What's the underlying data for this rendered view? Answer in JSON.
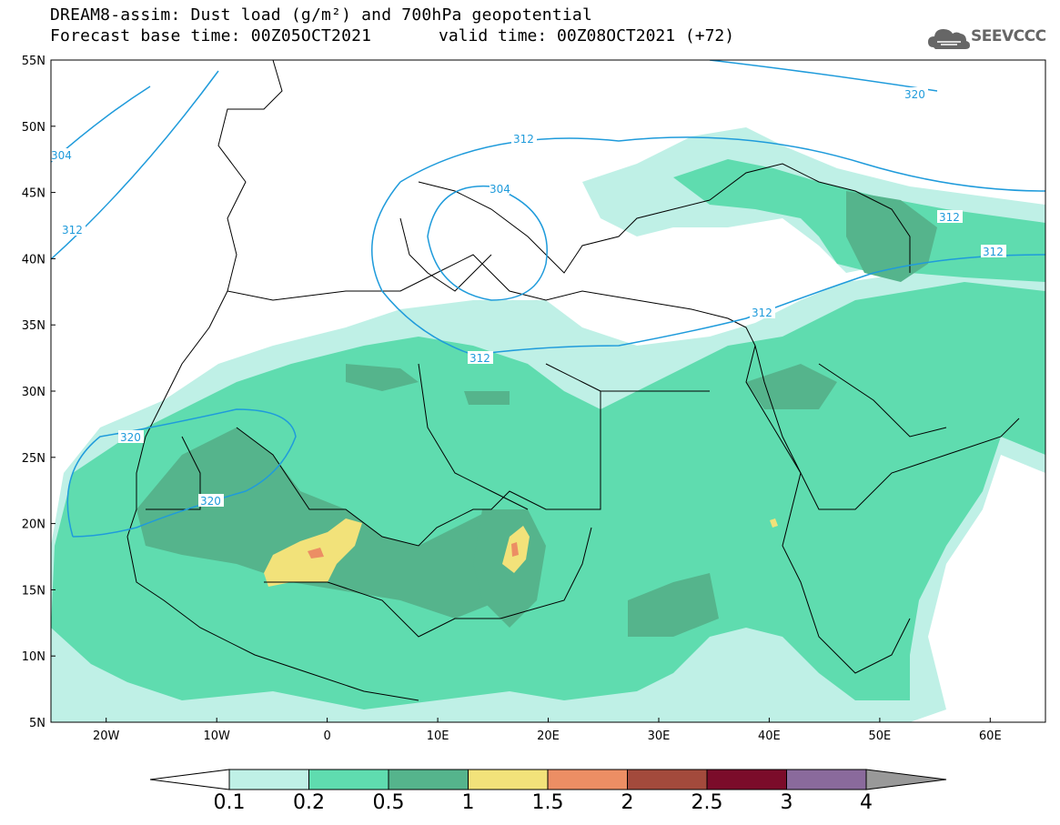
{
  "title": {
    "line1": "DREAM8-assim: Dust load (g/m²) and 700hPa geopotential",
    "base_time": "Forecast base time: 00Z05OCT2021",
    "valid_time": "valid time: 00Z08OCT2021 (+72)"
  },
  "logo": {
    "text": "SEEVCCC",
    "icon": "cloud-logo-icon"
  },
  "axes": {
    "lat_labels": [
      "55N",
      "50N",
      "45N",
      "40N",
      "35N",
      "30N",
      "25N",
      "20N",
      "15N",
      "10N",
      "5N"
    ],
    "lon_labels": [
      "20W",
      "10W",
      "0",
      "10E",
      "20E",
      "30E",
      "40E",
      "50E",
      "60E"
    ],
    "lat_range": [
      5,
      55
    ],
    "lon_range": [
      -25,
      65
    ]
  },
  "colorbar": {
    "levels": [
      "0.1",
      "0.2",
      "0.5",
      "1",
      "1.5",
      "2",
      "2.5",
      "3",
      "4"
    ],
    "colors": [
      "#bff0e6",
      "#5fdcaf",
      "#55b48c",
      "#f2e27a",
      "#ec8e64",
      "#a34a3c",
      "#7b0c2a",
      "#8a6a9c"
    ],
    "overflow_color": "#999999"
  },
  "contours": {
    "color": "#1f9bdb",
    "labels": [
      "320",
      "312",
      "304",
      "312",
      "304",
      "312",
      "312",
      "312",
      "320",
      "320",
      "312"
    ]
  }
}
